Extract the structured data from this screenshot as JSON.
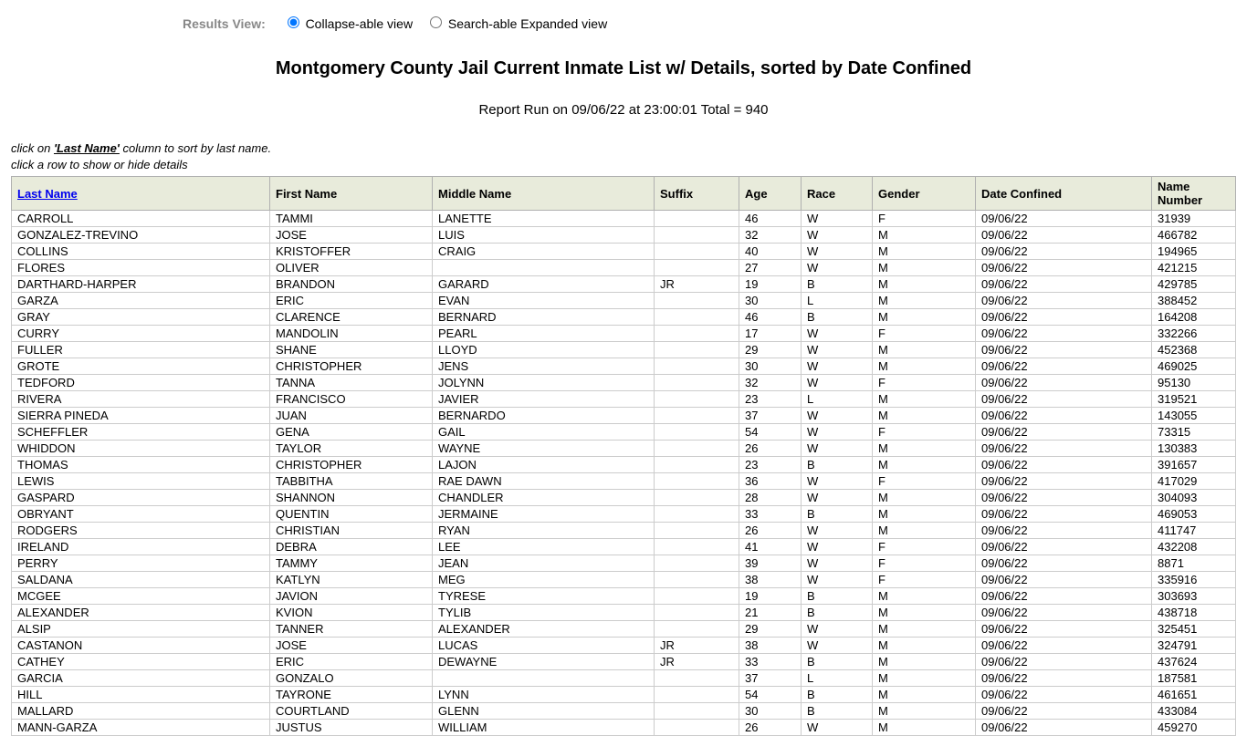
{
  "resultsView": {
    "label": "Results View:",
    "options": {
      "collapse": "Collapse-able view",
      "expanded": "Search-able Expanded view"
    }
  },
  "title": "Montgomery County Jail Current Inmate List w/ Details, sorted by Date Confined",
  "reportInfo": "Report Run on 09/06/22 at 23:00:01 Total = 940",
  "instructions": {
    "line1_pre": "click on ",
    "line1_em": "'Last Name'",
    "line1_post": " column to sort by last name.",
    "line2": "click a row to show or hide details"
  },
  "columns": {
    "lastName": "Last Name",
    "firstName": "First Name",
    "middleName": "Middle Name",
    "suffix": "Suffix",
    "age": "Age",
    "race": "Race",
    "gender": "Gender",
    "dateConfined": "Date Confined",
    "nameNumber": "Name Number"
  },
  "rows": [
    {
      "lastName": "CARROLL",
      "firstName": "TAMMI",
      "middleName": "LANETTE",
      "suffix": "",
      "age": "46",
      "race": "W",
      "gender": "F",
      "dateConfined": "09/06/22",
      "nameNumber": "31939"
    },
    {
      "lastName": "GONZALEZ-TREVINO",
      "firstName": "JOSE",
      "middleName": "LUIS",
      "suffix": "",
      "age": "32",
      "race": "W",
      "gender": "M",
      "dateConfined": "09/06/22",
      "nameNumber": "466782"
    },
    {
      "lastName": "COLLINS",
      "firstName": "KRISTOFFER",
      "middleName": "CRAIG",
      "suffix": "",
      "age": "40",
      "race": "W",
      "gender": "M",
      "dateConfined": "09/06/22",
      "nameNumber": "194965"
    },
    {
      "lastName": "FLORES",
      "firstName": "OLIVER",
      "middleName": "",
      "suffix": "",
      "age": "27",
      "race": "W",
      "gender": "M",
      "dateConfined": "09/06/22",
      "nameNumber": "421215"
    },
    {
      "lastName": "DARTHARD-HARPER",
      "firstName": "BRANDON",
      "middleName": "GARARD",
      "suffix": "JR",
      "age": "19",
      "race": "B",
      "gender": "M",
      "dateConfined": "09/06/22",
      "nameNumber": "429785"
    },
    {
      "lastName": "GARZA",
      "firstName": "ERIC",
      "middleName": "EVAN",
      "suffix": "",
      "age": "30",
      "race": "L",
      "gender": "M",
      "dateConfined": "09/06/22",
      "nameNumber": "388452"
    },
    {
      "lastName": "GRAY",
      "firstName": "CLARENCE",
      "middleName": "BERNARD",
      "suffix": "",
      "age": "46",
      "race": "B",
      "gender": "M",
      "dateConfined": "09/06/22",
      "nameNumber": "164208"
    },
    {
      "lastName": "CURRY",
      "firstName": "MANDOLIN",
      "middleName": "PEARL",
      "suffix": "",
      "age": "17",
      "race": "W",
      "gender": "F",
      "dateConfined": "09/06/22",
      "nameNumber": "332266"
    },
    {
      "lastName": "FULLER",
      "firstName": "SHANE",
      "middleName": "LLOYD",
      "suffix": "",
      "age": "29",
      "race": "W",
      "gender": "M",
      "dateConfined": "09/06/22",
      "nameNumber": "452368"
    },
    {
      "lastName": "GROTE",
      "firstName": "CHRISTOPHER",
      "middleName": "JENS",
      "suffix": "",
      "age": "30",
      "race": "W",
      "gender": "M",
      "dateConfined": "09/06/22",
      "nameNumber": "469025"
    },
    {
      "lastName": "TEDFORD",
      "firstName": "TANNA",
      "middleName": "JOLYNN",
      "suffix": "",
      "age": "32",
      "race": "W",
      "gender": "F",
      "dateConfined": "09/06/22",
      "nameNumber": "95130"
    },
    {
      "lastName": "RIVERA",
      "firstName": "FRANCISCO",
      "middleName": "JAVIER",
      "suffix": "",
      "age": "23",
      "race": "L",
      "gender": "M",
      "dateConfined": "09/06/22",
      "nameNumber": "319521"
    },
    {
      "lastName": "SIERRA PINEDA",
      "firstName": "JUAN",
      "middleName": "BERNARDO",
      "suffix": "",
      "age": "37",
      "race": "W",
      "gender": "M",
      "dateConfined": "09/06/22",
      "nameNumber": "143055"
    },
    {
      "lastName": "SCHEFFLER",
      "firstName": "GENA",
      "middleName": "GAIL",
      "suffix": "",
      "age": "54",
      "race": "W",
      "gender": "F",
      "dateConfined": "09/06/22",
      "nameNumber": "73315"
    },
    {
      "lastName": "WHIDDON",
      "firstName": "TAYLOR",
      "middleName": "WAYNE",
      "suffix": "",
      "age": "26",
      "race": "W",
      "gender": "M",
      "dateConfined": "09/06/22",
      "nameNumber": "130383"
    },
    {
      "lastName": "THOMAS",
      "firstName": "CHRISTOPHER",
      "middleName": "LAJON",
      "suffix": "",
      "age": "23",
      "race": "B",
      "gender": "M",
      "dateConfined": "09/06/22",
      "nameNumber": "391657"
    },
    {
      "lastName": "LEWIS",
      "firstName": "TABBITHA",
      "middleName": "RAE DAWN",
      "suffix": "",
      "age": "36",
      "race": "W",
      "gender": "F",
      "dateConfined": "09/06/22",
      "nameNumber": "417029"
    },
    {
      "lastName": "GASPARD",
      "firstName": "SHANNON",
      "middleName": "CHANDLER",
      "suffix": "",
      "age": "28",
      "race": "W",
      "gender": "M",
      "dateConfined": "09/06/22",
      "nameNumber": "304093"
    },
    {
      "lastName": "OBRYANT",
      "firstName": "QUENTIN",
      "middleName": "JERMAINE",
      "suffix": "",
      "age": "33",
      "race": "B",
      "gender": "M",
      "dateConfined": "09/06/22",
      "nameNumber": "469053"
    },
    {
      "lastName": "RODGERS",
      "firstName": "CHRISTIAN",
      "middleName": "RYAN",
      "suffix": "",
      "age": "26",
      "race": "W",
      "gender": "M",
      "dateConfined": "09/06/22",
      "nameNumber": "411747"
    },
    {
      "lastName": "IRELAND",
      "firstName": "DEBRA",
      "middleName": "LEE",
      "suffix": "",
      "age": "41",
      "race": "W",
      "gender": "F",
      "dateConfined": "09/06/22",
      "nameNumber": "432208"
    },
    {
      "lastName": "PERRY",
      "firstName": "TAMMY",
      "middleName": "JEAN",
      "suffix": "",
      "age": "39",
      "race": "W",
      "gender": "F",
      "dateConfined": "09/06/22",
      "nameNumber": "8871"
    },
    {
      "lastName": "SALDANA",
      "firstName": "KATLYN",
      "middleName": "MEG",
      "suffix": "",
      "age": "38",
      "race": "W",
      "gender": "F",
      "dateConfined": "09/06/22",
      "nameNumber": "335916"
    },
    {
      "lastName": "MCGEE",
      "firstName": "JAVION",
      "middleName": "TYRESE",
      "suffix": "",
      "age": "19",
      "race": "B",
      "gender": "M",
      "dateConfined": "09/06/22",
      "nameNumber": "303693"
    },
    {
      "lastName": "ALEXANDER",
      "firstName": "KVION",
      "middleName": "TYLIB",
      "suffix": "",
      "age": "21",
      "race": "B",
      "gender": "M",
      "dateConfined": "09/06/22",
      "nameNumber": "438718"
    },
    {
      "lastName": "ALSIP",
      "firstName": "TANNER",
      "middleName": "ALEXANDER",
      "suffix": "",
      "age": "29",
      "race": "W",
      "gender": "M",
      "dateConfined": "09/06/22",
      "nameNumber": "325451"
    },
    {
      "lastName": "CASTANON",
      "firstName": "JOSE",
      "middleName": "LUCAS",
      "suffix": "JR",
      "age": "38",
      "race": "W",
      "gender": "M",
      "dateConfined": "09/06/22",
      "nameNumber": "324791"
    },
    {
      "lastName": "CATHEY",
      "firstName": "ERIC",
      "middleName": "DEWAYNE",
      "suffix": "JR",
      "age": "33",
      "race": "B",
      "gender": "M",
      "dateConfined": "09/06/22",
      "nameNumber": "437624"
    },
    {
      "lastName": "GARCIA",
      "firstName": "GONZALO",
      "middleName": "",
      "suffix": "",
      "age": "37",
      "race": "L",
      "gender": "M",
      "dateConfined": "09/06/22",
      "nameNumber": "187581"
    },
    {
      "lastName": "HILL",
      "firstName": "TAYRONE",
      "middleName": "LYNN",
      "suffix": "",
      "age": "54",
      "race": "B",
      "gender": "M",
      "dateConfined": "09/06/22",
      "nameNumber": "461651"
    },
    {
      "lastName": "MALLARD",
      "firstName": "COURTLAND",
      "middleName": "GLENN",
      "suffix": "",
      "age": "30",
      "race": "B",
      "gender": "M",
      "dateConfined": "09/06/22",
      "nameNumber": "433084"
    },
    {
      "lastName": "MANN-GARZA",
      "firstName": "JUSTUS",
      "middleName": "WILLIAM",
      "suffix": "",
      "age": "26",
      "race": "W",
      "gender": "M",
      "dateConfined": "09/06/22",
      "nameNumber": "459270"
    }
  ]
}
